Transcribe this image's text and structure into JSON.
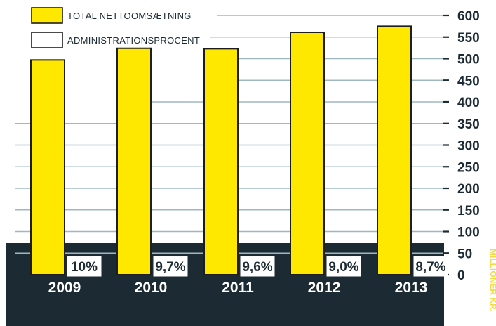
{
  "chart_data": {
    "type": "bar",
    "categories": [
      "2009",
      "2010",
      "2011",
      "2012",
      "2013"
    ],
    "series": [
      {
        "name": "TOTAL NETTOOMSÆTNING",
        "values": [
          497,
          524,
          523,
          561,
          575
        ]
      }
    ],
    "percent_labels": [
      "10%",
      "9,7%",
      "9,6%",
      "9,0%",
      "8,7%"
    ],
    "legend": [
      {
        "label": "TOTAL NETTOOMSÆTNING",
        "swatch": "#ffe800"
      },
      {
        "label": "ADMINISTRATIONSPROCENT",
        "swatch": "#ffffff"
      }
    ],
    "yticks": [
      0,
      50,
      100,
      150,
      200,
      250,
      300,
      350,
      400,
      450,
      500,
      550,
      600
    ],
    "ylim": [
      0,
      600
    ],
    "grid": true,
    "legend_position": "top-left",
    "axis_side": "right",
    "colors": {
      "bar": "#ffe800",
      "bar_outline": "#1d1d1b",
      "band": "#1b2a33",
      "grid": "#9fb8c0",
      "axis_text": "#1b2a33",
      "year_text": "#ffffff",
      "side_text": "#f4d84a"
    },
    "side_text": "MILLIONER KR."
  }
}
